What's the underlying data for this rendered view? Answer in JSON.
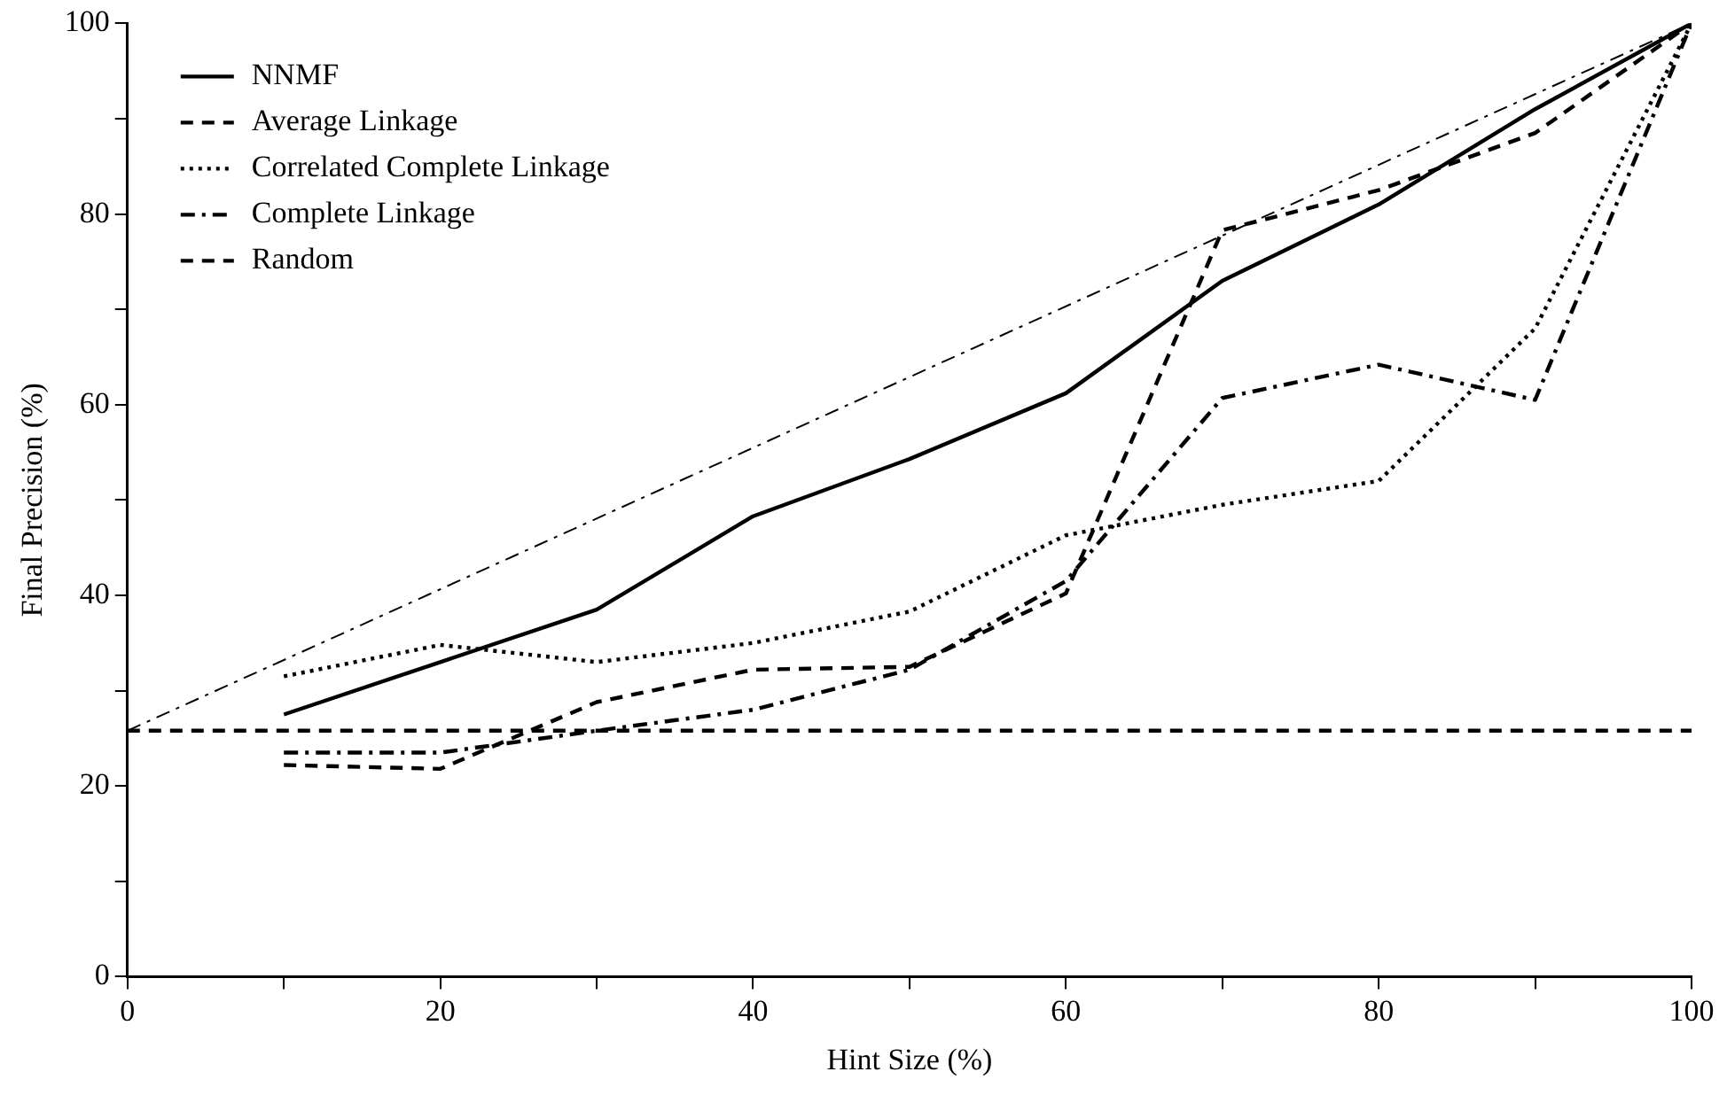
{
  "chart_data": {
    "type": "line",
    "xlabel": "Hint Size (%)",
    "ylabel": "Final Precision (%)",
    "xlim": [
      0,
      100
    ],
    "ylim": [
      0,
      100
    ],
    "xticks": [
      0,
      {
        "value": 10,
        "label": null
      },
      20,
      {
        "value": 30,
        "label": null
      },
      40,
      {
        "value": 50,
        "label": null
      },
      60,
      {
        "value": 70,
        "label": null
      },
      80,
      {
        "value": 90,
        "label": null
      },
      100
    ],
    "yticks": [
      0,
      {
        "value": 10,
        "label": null
      },
      20,
      {
        "value": 30,
        "label": null
      },
      40,
      {
        "value": 50,
        "label": null
      },
      60,
      {
        "value": 70,
        "label": null
      },
      80,
      {
        "value": 90,
        "label": null
      },
      100
    ],
    "grid": false,
    "legend": "top left",
    "marker": "none",
    "series": [
      {
        "name": "NNMF",
        "color": "#000000",
        "line_style": "solid",
        "x": [
          10,
          20,
          30,
          40,
          50,
          60,
          70,
          80,
          90,
          100
        ],
        "values": [
          27.5,
          33,
          38.5,
          48.3,
          54.3,
          61.2,
          73,
          81,
          91,
          100
        ]
      },
      {
        "name": "Average Linkage",
        "color": "#000000",
        "line_style": "dashed",
        "x": [
          10,
          20,
          30,
          40,
          50,
          60,
          70,
          80,
          90,
          100
        ],
        "values": [
          22.2,
          21.8,
          28.8,
          32.2,
          32.5,
          40.2,
          78.3,
          82.5,
          88.5,
          100
        ]
      },
      {
        "name": "Correlated Complete Linkage",
        "color": "#000000",
        "line_style": "dotted",
        "x": [
          10,
          20,
          30,
          40,
          50,
          60,
          70,
          80,
          90,
          100
        ],
        "values": [
          31.5,
          34.8,
          33,
          35,
          38.3,
          46.3,
          49.5,
          52,
          68,
          100
        ]
      },
      {
        "name": "Complete Linkage",
        "color": "#000000",
        "line_style": "dashdot",
        "x": [
          10,
          20,
          30,
          40,
          50,
          60,
          70,
          80,
          90,
          100
        ],
        "values": [
          23.5,
          23.5,
          25.8,
          28,
          32.2,
          41.5,
          60.7,
          64.2,
          60.5,
          100
        ]
      },
      {
        "name": "Random",
        "color": "#000000",
        "line_style": "dashed",
        "x": [
          0,
          100
        ],
        "values": [
          25.8,
          25.8
        ]
      },
      {
        "color": "#000000",
        "line_style": "dashdot",
        "x": [
          0,
          100
        ],
        "values": [
          25.8,
          100
        ]
      }
    ]
  }
}
